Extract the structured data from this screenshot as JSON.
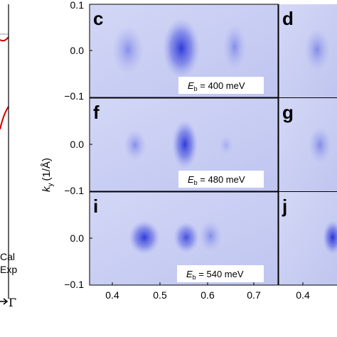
{
  "figure": {
    "ylabel_var": "k",
    "ylabel_sub": "y",
    "ylabel_unit": "(1/Å)",
    "legend": {
      "cal": "Cal",
      "exp": "Exp"
    },
    "gamma_label": "Γ",
    "y_ticks": [
      "0.1",
      "0.0",
      "−0.1"
    ],
    "x_ticks": [
      "0.4",
      "0.5",
      "0.6",
      "0.7"
    ],
    "x_ticks_right": [
      "0.4"
    ],
    "panels": [
      {
        "letter": "c",
        "energy_var": "E",
        "energy_sub": "b",
        "energy_value": " = 400 meV"
      },
      {
        "letter": "d"
      },
      {
        "letter": "f",
        "energy_var": "E",
        "energy_sub": "b",
        "energy_value": " = 480 meV"
      },
      {
        "letter": "g"
      },
      {
        "letter": "i",
        "energy_var": "E",
        "energy_sub": "b",
        "energy_value": " = 540 meV"
      },
      {
        "letter": "j"
      }
    ],
    "colors": {
      "map_base": "#c9cef2",
      "map_spot": "#1f2bd6",
      "band": "#d40000"
    }
  }
}
